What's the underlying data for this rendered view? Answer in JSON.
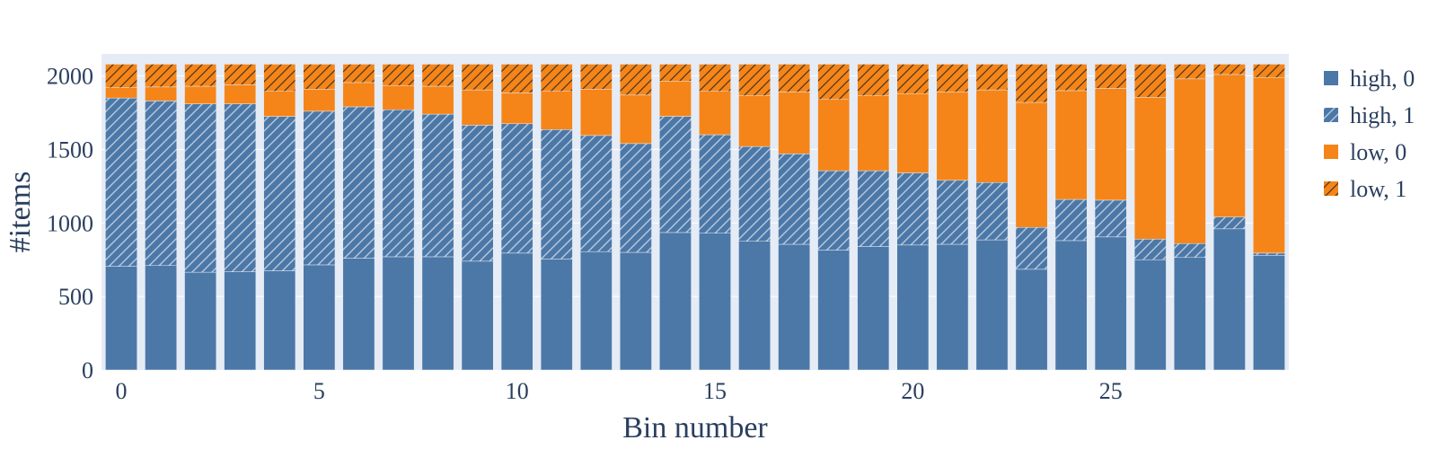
{
  "chart_data": {
    "type": "bar",
    "barmode": "stack",
    "xlabel": "Bin number",
    "ylabel": "#items",
    "xlim": [
      -0.5,
      29.5
    ],
    "ylim": [
      0,
      2150
    ],
    "x_ticks": [
      0,
      5,
      10,
      15,
      20,
      25
    ],
    "y_ticks": [
      0,
      500,
      1000,
      1500,
      2000
    ],
    "grid": true,
    "legend_position": "right",
    "categories": [
      0,
      1,
      2,
      3,
      4,
      5,
      6,
      7,
      8,
      9,
      10,
      11,
      12,
      13,
      14,
      15,
      16,
      17,
      18,
      19,
      20,
      21,
      22,
      23,
      24,
      25,
      26,
      27,
      28,
      29
    ],
    "series": [
      {
        "name": "high, 0",
        "color": "#4c78a8",
        "pattern": "none",
        "values": [
          705,
          710,
          665,
          668,
          675,
          715,
          760,
          770,
          770,
          740,
          795,
          755,
          805,
          800,
          935,
          930,
          875,
          855,
          815,
          840,
          850,
          855,
          885,
          685,
          880,
          905,
          750,
          765,
          960,
          780
        ]
      },
      {
        "name": "high, 1",
        "color": "#4c78a8",
        "pattern": "hatch",
        "values": [
          1145,
          1120,
          1145,
          1142,
          1050,
          1045,
          1030,
          1000,
          970,
          925,
          880,
          880,
          790,
          740,
          790,
          670,
          645,
          615,
          540,
          515,
          490,
          435,
          390,
          285,
          280,
          250,
          140,
          95,
          80,
          15
        ]
      },
      {
        "name": "low, 0",
        "color": "#f58518",
        "pattern": "none",
        "values": [
          70,
          95,
          120,
          130,
          170,
          150,
          165,
          165,
          190,
          240,
          210,
          260,
          315,
          330,
          240,
          295,
          345,
          420,
          485,
          510,
          540,
          600,
          630,
          850,
          740,
          760,
          965,
          1120,
          970,
          1195
        ]
      },
      {
        "name": "low, 1",
        "color": "#f58518",
        "pattern": "hatch",
        "values": [
          160,
          155,
          150,
          140,
          185,
          170,
          125,
          145,
          150,
          175,
          195,
          185,
          170,
          210,
          115,
          185,
          215,
          190,
          240,
          215,
          200,
          190,
          175,
          260,
          180,
          165,
          225,
          100,
          70,
          90
        ]
      }
    ]
  }
}
